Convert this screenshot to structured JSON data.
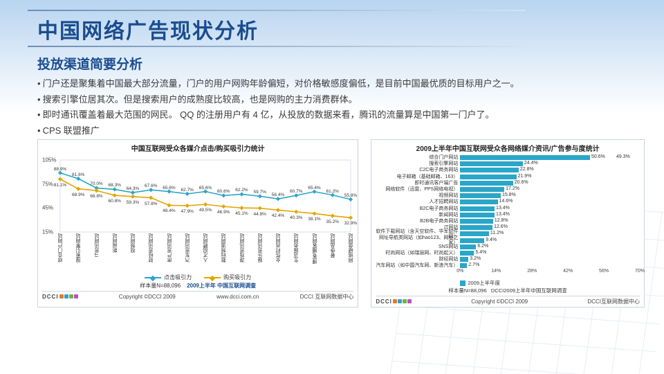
{
  "title": "中国网络广告现状分析",
  "subtitle": "投放渠道简要分析",
  "bullets": [
    "门户还是聚集着中国最大部分流量，门户的用户网购年龄偏短，对价格敏感度偏低，是目前中国最优质的目标用户之一。",
    "搜索引擎位居其次。但是搜索用户的成熟度比较高，也是网购的主力消费群体。",
    "即时通讯覆盖着最大范围的网民。 QQ 的注册用户有 4 亿，从投放的数据来看，腾讯的流量算是中国第一门户了。",
    "CPS 联盟推广"
  ],
  "left_chart": {
    "title": "中国互联网受众各媒介点击/购买吸引力统计",
    "type": "line",
    "y_ticks": [
      "15%",
      "45%",
      "75%",
      "105%"
    ],
    "ylim": [
      15,
      105
    ],
    "series": [
      {
        "name": "点击吸引力",
        "color": "#2aa6c9",
        "marker": "diamond",
        "values": [
          88.9,
          81.6,
          70.0,
          68.3,
          64.3,
          67.6,
          65.6,
          62.7,
          65.6,
          60.6,
          62.2,
          59.7,
          56.4,
          60.7,
          65.4,
          61.2,
          55.8
        ]
      },
      {
        "name": "购买吸引力",
        "color": "#e4a400",
        "marker": "diamond",
        "values": [
          81.1,
          68.9,
          66.8,
          60.8,
          59.3,
          57.8,
          48.4,
          47.9,
          49.5,
          46.9,
          45.1,
          44.8,
          42.4,
          40.3,
          38.1,
          35.2,
          32.9
        ]
      }
    ],
    "second_top_labels": [
      88.9,
      81.6,
      70.0,
      68.3,
      64.3,
      67.6,
      65.6,
      62.7,
      65.6,
      60.6,
      62.2,
      59.7,
      56.4,
      60.7,
      65.4,
      61.2,
      55.8
    ],
    "second_bot_labels": [
      81.1,
      68.9,
      66.8,
      60.8,
      59.3,
      57.8,
      48.4,
      47.9,
      49.5,
      46.9,
      45.1,
      44.8,
      42.4,
      40.3,
      38.1,
      35.2,
      32.9
    ],
    "mid_labels": [
      "81.1%",
      "68.9%",
      "66.8%",
      "60.8%",
      "59.3%",
      "57.8%",
      "48.4%",
      "47.9%",
      "49.5%",
      "46.9%",
      "45.1%",
      "44.8%",
      "42.4%",
      "40.3%",
      "38.1%",
      "35.2%",
      "32.9%"
    ],
    "categories": [
      "综合门户网站",
      "搜索引擎网站",
      "IT资讯网站",
      "新闻网站",
      "视频网站",
      "财经资讯网站",
      "房产资讯网站",
      "汽车资讯网站",
      "人才招聘网站",
      "数码频道网站",
      "游戏资讯网站",
      "娱乐资讯网站",
      "女性时尚网站",
      "生活服务网站",
      "博客/播客网站",
      "奢侈品网站",
      "网络硬盘网站"
    ],
    "sample_text": "样本量N=88,096",
    "survey_text": "2009上半年 中国互联网调查",
    "copyright": "Copyright  ©DCCI 2009",
    "site": "www.dcci.com.cn",
    "center": "DCCI 互联网数据中心",
    "logo_colors": [
      "#e07b2f",
      "#2fa3d0",
      "#6fb53a",
      "#b94fcf"
    ]
  },
  "right_chart": {
    "title": "2009上半年中国互联网受众各网络媒介资讯/广告参与度统计",
    "type": "hbar",
    "color": "#2aa6c9",
    "xlim": [
      0,
      70
    ],
    "xtick_step": 14,
    "xticks": [
      "0%",
      "14%",
      "28%",
      "42%",
      "56%",
      "70%"
    ],
    "items": [
      {
        "label": "综合门户网站",
        "value": 50.6,
        "value2": 49.3
      },
      {
        "label": "搜索引擎网站",
        "value": 24.4
      },
      {
        "label": "C2C电子商务网站",
        "value": 22.8
      },
      {
        "label": "电子邮箱（基础邮箱、163）",
        "value": 21.9
      },
      {
        "label": "即时通讯客户端广告",
        "value": 20.6
      },
      {
        "label": "网络软件（迅雷、PPS网络电视）",
        "value": 17.2
      },
      {
        "label": "视频网站",
        "value": 15.8
      },
      {
        "label": "人才招聘网站",
        "value": 14.6
      },
      {
        "label": "B2C电子商务网站",
        "value": 13.4
      },
      {
        "label": "新闻网站",
        "value": 13.4
      },
      {
        "label": "B2B电子商务网站",
        "value": 12.8
      },
      {
        "label": "IT网站",
        "value": 12.6
      },
      {
        "label": "软件下载网站（含天空软件、华军软件园）",
        "value": 11.2
      },
      {
        "label": "网址导航类网站（如hao123、网址之家）",
        "value": 9.4
      },
      {
        "label": "SNS网站",
        "value": 6.2
      },
      {
        "label": "时尚网站（如瑞丽网、时尚起义）",
        "value": 5.4
      },
      {
        "label": "财经网站",
        "value": 3.2
      },
      {
        "label": "汽车网站（如中国汽车网、新浪汽车）",
        "value": 2.7
      }
    ],
    "legend": "2009上半年度",
    "sample_text": "样本量N=88,096",
    "survey_text": "DCCI2009上半年中国互联网调查",
    "copyright": "Copyright ©DCCI 2009",
    "center": "DCCI互联网数据中心",
    "logo_colors": [
      "#e07b2f",
      "#2fa3d0",
      "#6fb53a",
      "#b94fcf"
    ]
  }
}
